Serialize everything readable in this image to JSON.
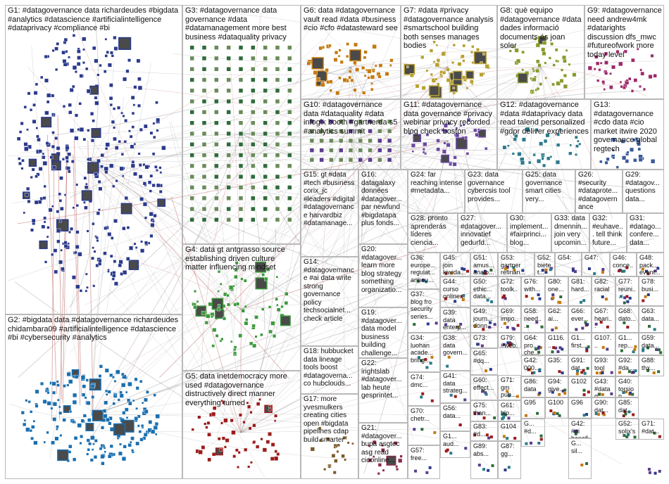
{
  "groups": [
    {
      "id": "G1",
      "label": "G1: #datagovernance data richardeudes #bigdata #analytics #datascience #artificialintelligence #dataprivacy #compliance #bi",
      "color": "#2b3a8c"
    },
    {
      "id": "G2",
      "label": "G2: #bigdata data #datagovernance richardeudes chidambara09 #artificialintelligence #datascience #bi #cybersecurity #analytics",
      "color": "#1a6fb0"
    },
    {
      "id": "G3",
      "label": "G3: #datagovernance data governance #data #datamanagement more best business #dataquality privacy",
      "color": "#2f6b3a"
    },
    {
      "id": "G4",
      "label": "G4: data gt antgrasso source establishing driven culture matter influencing mindset",
      "color": "#3c9a3c"
    },
    {
      "id": "G5",
      "label": "G5: data inetdemocracy more used #datagovernance distructively direct manner everything turned",
      "color": "#9b1c1c"
    },
    {
      "id": "G6",
      "label": "G6: data #datagovernance vault read #data #business #cio #cfo #datasteward see",
      "color": "#c47a12"
    },
    {
      "id": "G7",
      "label": "G7: #data #privacy #datagovernance analysis #smartschool building both senses manages bodies",
      "color": "#b8a030"
    },
    {
      "id": "G8",
      "label": "G8: què equipo #datagovernance #data dades informació documents és joan soler",
      "color": "#8a9a2a"
    },
    {
      "id": "G9",
      "label": "G9: #datagovernance need andrew4mk #datarights discussion dfs_mwc #futureofwork more today level",
      "color": "#9c2a6a"
    },
    {
      "id": "G10",
      "label": "G10: #datagovernance data #dataquality #data infogix booth #gartnerda s5 #analytics summit",
      "color": "#5a3d8c"
    },
    {
      "id": "G11",
      "label": "G11: #datagovernance data governance #privacy webinar privacy recorded blog check boston",
      "color": "#6a4aa0"
    },
    {
      "id": "G12",
      "label": "G12: #datagovernance #data #dataprivacy data read talend personalized #gdpr deliver experiences",
      "color": "#2a7a8a"
    },
    {
      "id": "G13",
      "label": "G13: #datagovernance #cdo data #cio market itwire 2020 governance global regtech",
      "color": "#3a5a9a"
    },
    {
      "id": "G14",
      "label": "G14: #datagovernance #ai data write strong governance policy techsocialnet... check article",
      "color": "#4a6a2a"
    },
    {
      "id": "G15",
      "label": "G15: gt #data #tech #business corix_jc #leaders #digital #datagovernance harvardbiz #datamanage...",
      "color": "#2a4a2a"
    },
    {
      "id": "G16",
      "label": "G16: datagalaxy données #datagover... par newfund #bigdatapa plus fonds...",
      "color": "#6a2a2a"
    },
    {
      "id": "G17",
      "label": "G17: more yvesmulkers creating cities open #bigdata pipelines cdap build smarter",
      "color": "#7a5a2a"
    },
    {
      "id": "G18",
      "label": "G18: hubbucket data lineage tools boost #datagoverna... co hubclouds...",
      "color": "#4a4a4a"
    },
    {
      "id": "G19",
      "label": "G19: #datagover... data model business building challenge...",
      "color": "#8a6a1a"
    },
    {
      "id": "G20",
      "label": "G20: #datagover... learn more blog strategy something organizatio...",
      "color": "#5a5a8a"
    },
    {
      "id": "G21",
      "label": "G21: #datagover... bupa asgtec asg read cioonline...",
      "color": "#8a2a4a"
    },
    {
      "id": "G22",
      "label": "G22: irightslab #datagover... lab heute gesprintet...",
      "color": "#2a6a6a"
    },
    {
      "id": "G23",
      "label": "G23: data governance cybercsis tool provides...",
      "color": "#6a6a2a"
    },
    {
      "id": "G24",
      "label": "G24: far reaching intense #metadata...",
      "color": "#3a3a6a"
    },
    {
      "id": "G25",
      "label": "G25: data governance smart cities very...",
      "color": "#4a7a4a"
    },
    {
      "id": "G26",
      "label": "G26: #security #dataprote... #datagovernance",
      "color": "#7a3a3a"
    },
    {
      "id": "G27",
      "label": "G27: #datagover... innovatief gedurfd...",
      "color": "#3a6a8a"
    },
    {
      "id": "G28",
      "label": "G28: pronto aprenderás líderes ciencia...",
      "color": "#6a3a6a"
    },
    {
      "id": "G29",
      "label": "G29: #datagov... questions data...",
      "color": "#3a5a3a"
    },
    {
      "id": "G30",
      "label": "G30: implement... #fairprinci... blog...",
      "color": "#5a4a3a"
    },
    {
      "id": "G31",
      "label": "G31: #datago... confere... data...",
      "color": "#4a4a7a"
    },
    {
      "id": "G32",
      "label": "G32: #euhave... tell think future...",
      "color": "#7a4a2a"
    },
    {
      "id": "G33",
      "label": "G33: data dmennin... join very upcomin...",
      "color": "#2a5a7a"
    }
  ],
  "small_groups": [
    {
      "id": "G36",
      "label": "G36: europe... regulat... annou..."
    },
    {
      "id": "G45",
      "label": "G45: join kiwida..."
    },
    {
      "id": "G51",
      "label": "G51: amus... analo..."
    },
    {
      "id": "G53",
      "label": "G53: gartner refinan... analy..."
    },
    {
      "id": "G52s",
      "label": "G52: bietet..."
    },
    {
      "id": "G54",
      "label": "G54:"
    },
    {
      "id": "G47",
      "label": "G47:"
    },
    {
      "id": "G46",
      "label": "G46: conce... #data..."
    },
    {
      "id": "G48",
      "label": "G48: pack... event..."
    },
    {
      "id": "G37",
      "label": "G37: blog fro security series..."
    },
    {
      "id": "G44",
      "label": "G44: curso online..."
    },
    {
      "id": "G50",
      "label": "G50: ethic... data..."
    },
    {
      "id": "G72",
      "label": "G72: toolk..."
    },
    {
      "id": "G76",
      "label": "G76: with..."
    },
    {
      "id": "G80",
      "label": "G80: one..."
    },
    {
      "id": "G81",
      "label": "G81: hard..."
    },
    {
      "id": "G82",
      "label": "G82: racial"
    },
    {
      "id": "G77",
      "label": "G77: reuni..."
    },
    {
      "id": "G78",
      "label": "G78: busi..."
    },
    {
      "id": "G39",
      "label": "G39: data enterp..."
    },
    {
      "id": "G49",
      "label": "G49: journ... donn..."
    },
    {
      "id": "G69",
      "label": "G69: impo..."
    },
    {
      "id": "G58",
      "label": "G58: need..."
    },
    {
      "id": "G62",
      "label": "G62: ai..."
    },
    {
      "id": "G66",
      "label": "G66: ever..."
    },
    {
      "id": "G67",
      "label": "G67: heari..."
    },
    {
      "id": "G68",
      "label": "G68: dato..."
    },
    {
      "id": "G63",
      "label": "G63: data..."
    },
    {
      "id": "G34",
      "label": "G34: luohan acade... bring..."
    },
    {
      "id": "G38",
      "label": "G38: data govern..."
    },
    {
      "id": "G73",
      "label": "G73:"
    },
    {
      "id": "G79",
      "label": "G79: #web..."
    },
    {
      "id": "G64",
      "label": "G64: pro... che..."
    },
    {
      "id": "G116",
      "label": "G116..."
    },
    {
      "id": "G101",
      "label": "G1... first..."
    },
    {
      "id": "G107",
      "label": "G107..."
    },
    {
      "id": "G102",
      "label": "G1... rep..."
    },
    {
      "id": "G59",
      "label": "G59: data..."
    },
    {
      "id": "G65",
      "label": "G65: #dq..."
    },
    {
      "id": "G42s",
      "label": "G42: 000..."
    },
    {
      "id": "G35",
      "label": "G35:"
    },
    {
      "id": "G74",
      "label": "G74: dmc..."
    },
    {
      "id": "G60",
      "label": "G60: effect..."
    },
    {
      "id": "G71s",
      "label": "G71: gm pub..."
    },
    {
      "id": "G41",
      "label": "G41: data strateg..."
    },
    {
      "id": "G91",
      "label": "G91: dat..."
    },
    {
      "id": "G93",
      "label": "G93: tool"
    },
    {
      "id": "G92",
      "label": "G92: #da..."
    },
    {
      "id": "G88",
      "label": "G88: thx..."
    },
    {
      "id": "G75",
      "label": "G75: than..."
    },
    {
      "id": "G61",
      "label": "G61: blo..."
    },
    {
      "id": "G86",
      "label": "G86: data"
    },
    {
      "id": "G94",
      "label": "G94: give..."
    },
    {
      "id": "G102b",
      "label": "G102"
    },
    {
      "id": "G43",
      "label": "G43: #datag... manag..."
    },
    {
      "id": "G40",
      "label": "G40: torsion #datag..."
    },
    {
      "id": "G70",
      "label": "G70: chetr..."
    },
    {
      "id": "G56",
      "label": "G56: data..."
    },
    {
      "id": "G83",
      "label": "G83: #d..."
    },
    {
      "id": "G104",
      "label": "G104"
    },
    {
      "id": "G100",
      "label": "G100"
    },
    {
      "id": "G90",
      "label": "G90: dat..."
    },
    {
      "id": "G85",
      "label": "G85: dat..."
    },
    {
      "id": "G96",
      "label": "G96"
    },
    {
      "id": "G95",
      "label": "G95"
    },
    {
      "id": "G42",
      "label": "G42: #ai benefit..."
    },
    {
      "id": "G52",
      "label": "G52: solix's..."
    },
    {
      "id": "G71",
      "label": "G71: #dat..."
    },
    {
      "id": "G57",
      "label": "G57: free..."
    },
    {
      "id": "G1x",
      "label": "G1... aud..."
    },
    {
      "id": "G89",
      "label": "G89: abs..."
    },
    {
      "id": "G87",
      "label": "G87: gg..."
    },
    {
      "id": "G97",
      "label": "G... #d..."
    },
    {
      "id": "G98",
      "label": "G... sil..."
    }
  ],
  "colors": {
    "border": "#b8b8b8",
    "edge": "#8a8a8a",
    "edge_red": "#b04040",
    "background": "#ffffff"
  }
}
